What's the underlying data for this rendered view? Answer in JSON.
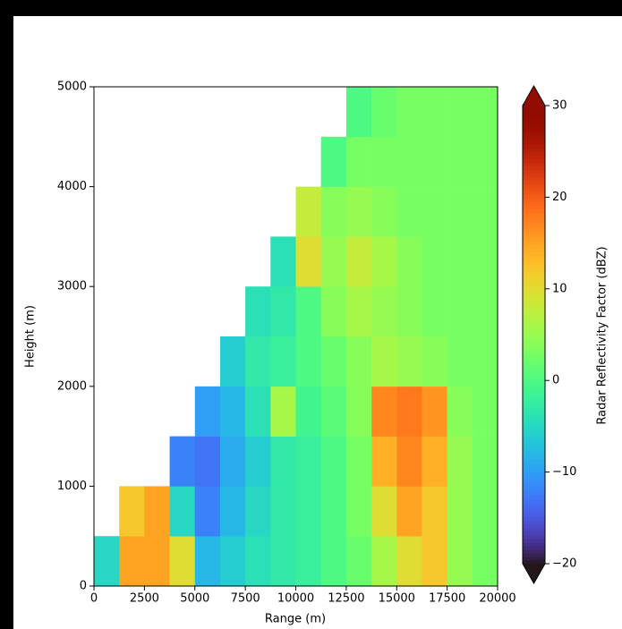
{
  "chart_data": {
    "type": "heatmap",
    "xlabel": "Range (m)",
    "ylabel": "Height (m)",
    "x_bins": [
      0,
      1250,
      2500,
      3750,
      5000,
      6250,
      7500,
      8750,
      10000,
      11250,
      12500,
      13750,
      15000,
      16250,
      17500,
      18750,
      20000
    ],
    "y_bins": [
      0,
      500,
      1000,
      1500,
      2000,
      2500,
      3000,
      3500,
      4000,
      4500,
      5000
    ],
    "values": [
      [
        -5,
        15,
        15,
        10,
        -8,
        -6,
        -4,
        -3,
        -2,
        0,
        2,
        6,
        10,
        12,
        5,
        3
      ],
      [
        null,
        12,
        15,
        -5,
        -12,
        -8,
        -5,
        -3,
        -2,
        0,
        3,
        10,
        15,
        12,
        5,
        3
      ],
      [
        null,
        null,
        null,
        -12,
        -13,
        -9,
        -6,
        -3,
        -2,
        0,
        3,
        14,
        17,
        14,
        5,
        3
      ],
      [
        null,
        null,
        null,
        null,
        -10,
        -8,
        -4,
        6,
        -1,
        1,
        4,
        17,
        18,
        16,
        4,
        3
      ],
      [
        null,
        null,
        null,
        null,
        null,
        -6,
        -3,
        -2,
        0,
        2,
        4,
        6,
        5,
        4,
        3,
        3
      ],
      [
        null,
        null,
        null,
        null,
        null,
        null,
        -4,
        -3,
        0,
        4,
        6,
        5,
        4,
        3,
        3,
        3
      ],
      [
        null,
        null,
        null,
        null,
        null,
        null,
        null,
        -4,
        10,
        5,
        8,
        6,
        4,
        3,
        3,
        3
      ],
      [
        null,
        null,
        null,
        null,
        null,
        null,
        null,
        null,
        8,
        4,
        5,
        4,
        3,
        3,
        3,
        3
      ],
      [
        null,
        null,
        null,
        null,
        null,
        null,
        null,
        null,
        null,
        0,
        3,
        3,
        3,
        3,
        3,
        3
      ],
      [
        null,
        null,
        null,
        null,
        null,
        null,
        null,
        null,
        null,
        null,
        0,
        2,
        3,
        3,
        3,
        3
      ]
    ],
    "xlim": [
      0,
      20000
    ],
    "xticks": [
      0,
      2500,
      5000,
      7500,
      10000,
      12500,
      15000,
      17500,
      20000
    ],
    "ylim": [
      0,
      5000
    ],
    "yticks": [
      0,
      1000,
      2000,
      3000,
      4000,
      5000
    ],
    "colormap": "turbo",
    "clim": [
      -20,
      30
    ],
    "colorbar_extend": "both",
    "colorbar_label": "Radar Reflectivity Factor (dBZ)",
    "cticks": [
      {
        "value": -20,
        "label": "−20"
      },
      {
        "value": -10,
        "label": "−10"
      },
      0,
      10,
      20,
      30
    ]
  }
}
